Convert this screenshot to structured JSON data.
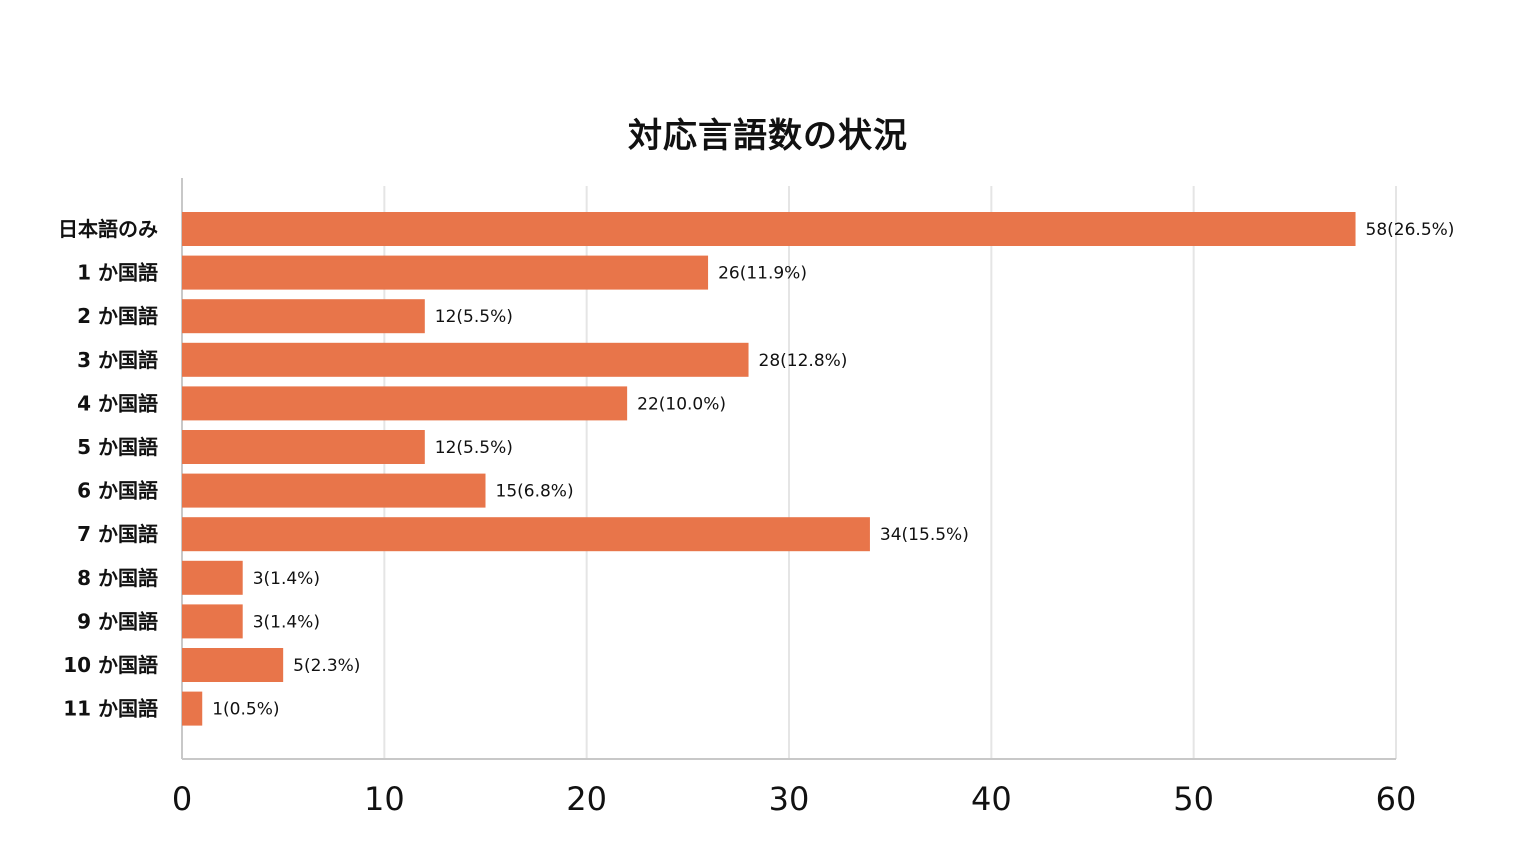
{
  "chart_data": {
    "type": "bar",
    "orientation": "horizontal",
    "title": "対応言語数の状況",
    "xlabel": "",
    "ylabel": "",
    "xlim": [
      0,
      60
    ],
    "xticks": [
      0,
      10,
      20,
      30,
      40,
      50,
      60
    ],
    "grid": true,
    "legend": "none",
    "bar_color": "#E8754A",
    "grid_color": "#E5E5E5",
    "axis_color": "#C8C8C8",
    "categories": [
      "日本語のみ",
      "1 か国語",
      "2 か国語",
      "3 か国語",
      "4 か国語",
      "5 か国語",
      "6 か国語",
      "7 か国語",
      "8 か国語",
      "9 か国語",
      "10 か国語",
      "11 か国語"
    ],
    "values": [
      58,
      26,
      12,
      28,
      22,
      12,
      15,
      34,
      3,
      3,
      5,
      1
    ],
    "data_labels": [
      "58(26.5%)",
      "26(11.9%)",
      "12(5.5%)",
      "28(12.8%)",
      "22(10.0%)",
      "12(5.5%)",
      "15(6.8%)",
      "34(15.5%)",
      "3(1.4%)",
      "3(1.4%)",
      "5(2.3%)",
      "1(0.5%)"
    ]
  }
}
